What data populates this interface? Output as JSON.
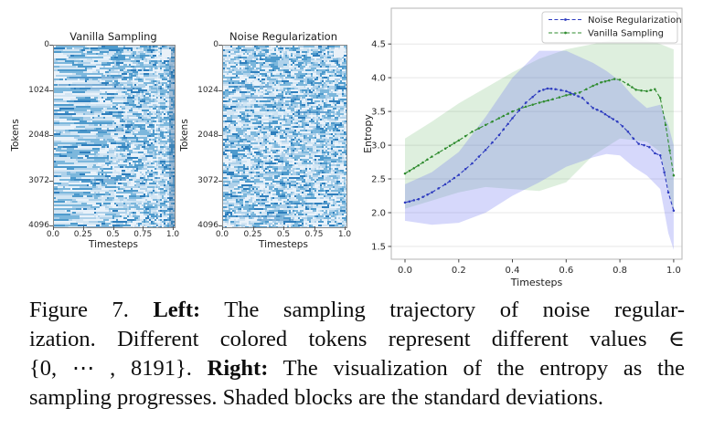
{
  "heatmaps": {
    "ylabel": "Tokens",
    "xlabel": "Timesteps",
    "y_ticks": [
      "0",
      "1024",
      "2048",
      "3072",
      "4096"
    ],
    "x_ticks": [
      "0.0",
      "0.25",
      "0.5",
      "0.75",
      "1.0"
    ],
    "panels": [
      {
        "title": "Vanilla Sampling",
        "style": "streaky"
      },
      {
        "title": "Noise Regularization",
        "style": "speckle"
      }
    ],
    "colormap": [
      "#e9f2fa",
      "#d2e5f3",
      "#aed1ea",
      "#7cb7dc",
      "#4e9acc",
      "#2e7ebc"
    ]
  },
  "chart_data": {
    "type": "line",
    "title": "",
    "xlabel": "Timesteps",
    "ylabel": "Entropy",
    "x_ticks": [
      "0.0",
      "0.2",
      "0.4",
      "0.6",
      "0.8",
      "1.0"
    ],
    "x_tick_vals": [
      0.0,
      0.2,
      0.4,
      0.6,
      0.8,
      1.0
    ],
    "y_ticks": [
      "1.5",
      "2.0",
      "2.5",
      "3.0",
      "3.5",
      "4.0",
      "4.5"
    ],
    "y_tick_vals": [
      1.5,
      2.0,
      2.5,
      3.0,
      3.5,
      4.0,
      4.5
    ],
    "xlim": [
      -0.051,
      1.031
    ],
    "ylim": [
      1.31,
      5.03
    ],
    "grid": "horizontal",
    "legend_position": "upper right",
    "series": [
      {
        "name": "Noise Regularization",
        "color": "#2d3bbf",
        "band_color": "rgba(105,110,240,0.27)",
        "x": [
          0,
          0.05,
          0.1,
          0.15,
          0.2,
          0.25,
          0.3,
          0.35,
          0.4,
          0.45,
          0.5,
          0.53,
          0.56,
          0.6,
          0.63,
          0.66,
          0.7,
          0.73,
          0.76,
          0.79,
          0.81,
          0.83,
          0.85,
          0.87,
          0.89,
          0.91,
          0.93,
          0.95,
          0.965,
          0.98,
          1.0
        ],
        "y": [
          2.15,
          2.2,
          2.3,
          2.42,
          2.56,
          2.73,
          2.93,
          3.15,
          3.4,
          3.63,
          3.8,
          3.84,
          3.83,
          3.8,
          3.75,
          3.7,
          3.55,
          3.5,
          3.42,
          3.35,
          3.28,
          3.2,
          3.1,
          3.02,
          3.0,
          2.97,
          2.88,
          2.85,
          2.6,
          2.3,
          2.03
        ],
        "band_x": [
          0,
          0.1,
          0.2,
          0.3,
          0.4,
          0.5,
          0.6,
          0.7,
          0.75,
          0.8,
          0.85,
          0.9,
          0.95,
          0.98,
          1.0
        ],
        "band_upper": [
          2.42,
          2.6,
          2.9,
          3.42,
          4.0,
          4.4,
          4.4,
          4.22,
          4.1,
          3.95,
          3.72,
          3.55,
          3.6,
          3.3,
          3.0
        ],
        "band_lower": [
          1.88,
          1.82,
          1.85,
          2.0,
          2.25,
          2.45,
          2.68,
          2.82,
          2.87,
          2.85,
          2.68,
          2.55,
          2.35,
          1.7,
          1.45
        ]
      },
      {
        "name": "Vanilla Sampling",
        "color": "#2e8b2e",
        "band_color": "rgba(70,165,70,0.18)",
        "x": [
          0,
          0.05,
          0.1,
          0.15,
          0.2,
          0.25,
          0.3,
          0.35,
          0.4,
          0.45,
          0.5,
          0.55,
          0.6,
          0.65,
          0.7,
          0.73,
          0.76,
          0.78,
          0.8,
          0.83,
          0.86,
          0.9,
          0.93,
          0.95,
          0.97,
          1.0
        ],
        "y": [
          2.58,
          2.7,
          2.83,
          2.95,
          3.07,
          3.2,
          3.3,
          3.4,
          3.5,
          3.57,
          3.63,
          3.68,
          3.74,
          3.78,
          3.88,
          3.93,
          3.96,
          3.98,
          3.97,
          3.9,
          3.82,
          3.8,
          3.83,
          3.7,
          3.3,
          2.55
        ],
        "band_x": [
          0,
          0.1,
          0.2,
          0.3,
          0.4,
          0.5,
          0.6,
          0.7,
          0.8,
          0.9,
          0.95,
          1.0
        ],
        "band_upper": [
          3.1,
          3.35,
          3.62,
          3.85,
          4.08,
          4.28,
          4.42,
          4.5,
          4.58,
          4.55,
          4.5,
          4.42
        ],
        "band_lower": [
          2.06,
          2.18,
          2.3,
          2.38,
          2.35,
          2.32,
          2.45,
          2.85,
          3.1,
          3.05,
          2.9,
          2.0
        ]
      }
    ]
  },
  "caption": {
    "lines": [
      [
        {
          "t": "Figure 7.  ",
          "b": false
        },
        {
          "t": "Left:",
          "b": true
        },
        {
          "t": "  The sampling trajectory of noise regular-",
          "b": false
        }
      ],
      [
        {
          "t": "ization.  Different colored tokens represent different values ∈",
          "b": false
        }
      ],
      [
        {
          "t": "{0, ⋯ , 8191}.  ",
          "b": false
        },
        {
          "t": "Right:",
          "b": true
        },
        {
          "t": " The visualization of the entropy as the",
          "b": false
        }
      ],
      [
        {
          "t": "sampling progresses. Shaded blocks are the standard deviations.",
          "b": false
        }
      ]
    ]
  }
}
